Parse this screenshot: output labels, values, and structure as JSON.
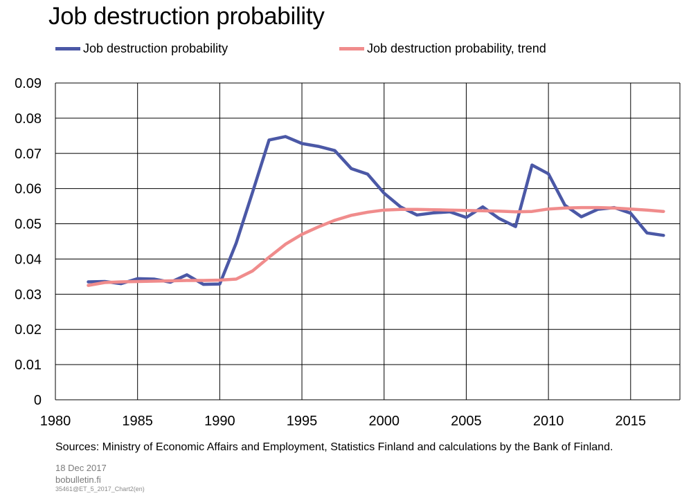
{
  "chart_data": {
    "type": "line",
    "title": "Job destruction probability",
    "xlabel": "",
    "ylabel": "",
    "xlim": [
      1980,
      2018
    ],
    "ylim": [
      0,
      0.09
    ],
    "x_ticks": [
      "1980",
      "1985",
      "1990",
      "1995",
      "2000",
      "2005",
      "2010",
      "2015"
    ],
    "y_ticks": [
      "0",
      "0.01",
      "0.02",
      "0.03",
      "0.04",
      "0.05",
      "0.06",
      "0.07",
      "0.08",
      "0.09"
    ],
    "grid": true,
    "legend_position": "top",
    "series": [
      {
        "name": "Job destruction probability",
        "color": "#4b58a6",
        "x": [
          1982,
          1983,
          1984,
          1985,
          1986,
          1987,
          1988,
          1989,
          1990,
          1991,
          1992,
          1993,
          1994,
          1995,
          1996,
          1997,
          1998,
          1999,
          2000,
          2001,
          2002,
          2003,
          2004,
          2005,
          2006,
          2007,
          2008,
          2009,
          2010,
          2011,
          2012,
          2013,
          2014,
          2015,
          2016,
          2017
        ],
        "values": [
          0.0335,
          0.0336,
          0.033,
          0.0344,
          0.0343,
          0.0334,
          0.0355,
          0.0328,
          0.0329,
          0.0445,
          0.059,
          0.0738,
          0.0748,
          0.0728,
          0.072,
          0.0708,
          0.0657,
          0.0641,
          0.0587,
          0.0548,
          0.0525,
          0.0531,
          0.0534,
          0.0518,
          0.0548,
          0.0515,
          0.0492,
          0.0667,
          0.0642,
          0.0553,
          0.052,
          0.0541,
          0.0546,
          0.053,
          0.0474,
          0.0467
        ]
      },
      {
        "name": "Job destruction probability, trend",
        "color": "#f08c8c",
        "x": [
          1982,
          1983,
          1984,
          1985,
          1986,
          1987,
          1988,
          1989,
          1990,
          1991,
          1992,
          1993,
          1994,
          1995,
          1996,
          1997,
          1998,
          1999,
          2000,
          2001,
          2002,
          2003,
          2004,
          2005,
          2006,
          2007,
          2008,
          2009,
          2010,
          2011,
          2012,
          2013,
          2014,
          2015,
          2016,
          2017
        ],
        "values": [
          0.0325,
          0.0333,
          0.0335,
          0.0336,
          0.0337,
          0.0338,
          0.0339,
          0.0339,
          0.034,
          0.0343,
          0.0366,
          0.0405,
          0.0442,
          0.047,
          0.0491,
          0.051,
          0.0524,
          0.0533,
          0.0539,
          0.0541,
          0.0541,
          0.054,
          0.0539,
          0.0538,
          0.0537,
          0.0536,
          0.0534,
          0.0535,
          0.0542,
          0.0545,
          0.0546,
          0.0546,
          0.0545,
          0.0542,
          0.0539,
          0.0535
        ]
      }
    ]
  },
  "source_text": "Sources: Ministry of Economic Affairs and Employment, Statistics Finland and calculations by the Bank of Finland.",
  "footer": {
    "date": "18 Dec 2017",
    "site": "bobulletin.fi",
    "code": "35461@ET_5_2017_Chart2(en)"
  }
}
